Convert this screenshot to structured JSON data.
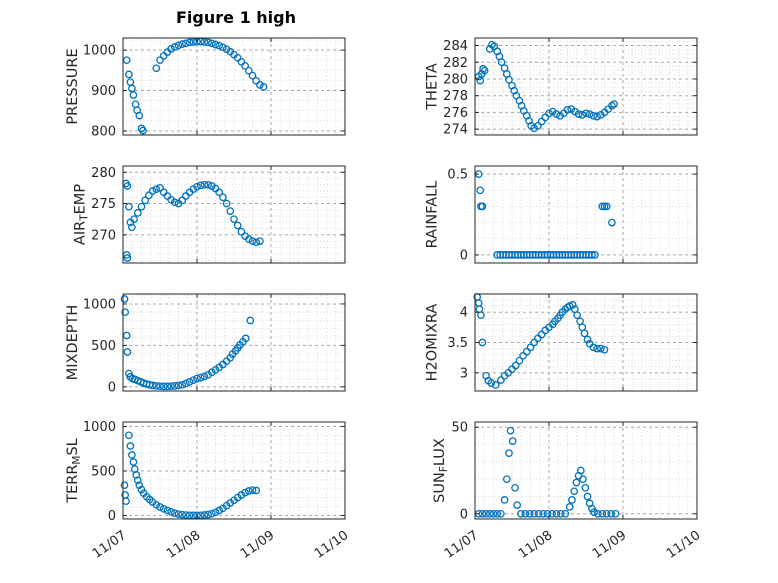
{
  "figure": {
    "title": "Figure 1 high",
    "marker_color": "#0072BD",
    "axis_color": "#262626",
    "grid_major_color": "#a9a9a9",
    "grid_minor_color": "#d8d8d8",
    "background": "#ffffff"
  },
  "x_axis": {
    "lim": [
      0,
      3
    ],
    "ticks": [
      0,
      1,
      2,
      3
    ],
    "tick_labels": [
      "11/07",
      "11/08",
      "11/09",
      "11/10"
    ],
    "minor_step": 0.125
  },
  "chart_data": [
    {
      "name": "PRESSURE",
      "type": "scatter",
      "ylabel_parts": [
        {
          "text": "PRESSURE",
          "sub": false
        }
      ],
      "ylim": [
        790,
        1030
      ],
      "yticks": [
        800,
        900,
        1000
      ],
      "ytick_labels": [
        "800",
        "900",
        "1000"
      ],
      "y_minor_step": 25,
      "x": [
        0.05,
        0.08,
        0.1,
        0.12,
        0.14,
        0.17,
        0.19,
        0.22,
        0.25,
        0.27,
        0.45,
        0.5,
        0.55,
        0.6,
        0.65,
        0.7,
        0.75,
        0.8,
        0.85,
        0.9,
        0.95,
        1.0,
        1.05,
        1.1,
        1.15,
        1.2,
        1.25,
        1.3,
        1.35,
        1.4,
        1.45,
        1.5,
        1.55,
        1.6,
        1.65,
        1.7,
        1.75,
        1.8,
        1.85,
        1.9
      ],
      "y": [
        975,
        940,
        921,
        905,
        889,
        866,
        851,
        838,
        806,
        801,
        955,
        975,
        986,
        995,
        1003,
        1008,
        1012,
        1015,
        1017,
        1019,
        1020,
        1021,
        1021,
        1020,
        1019,
        1017,
        1014,
        1011,
        1007,
        1002,
        996,
        989,
        981,
        971,
        961,
        949,
        937,
        924,
        914,
        909
      ]
    },
    {
      "name": "THETA",
      "type": "scatter",
      "ylabel_parts": [
        {
          "text": "THETA",
          "sub": false
        }
      ],
      "ylim": [
        273.3,
        284.9
      ],
      "yticks": [
        274,
        276,
        278,
        280,
        282,
        284
      ],
      "ytick_labels": [
        "274",
        "276",
        "278",
        "280",
        "282",
        "284"
      ],
      "y_minor_step": 0.5,
      "x": [
        0.05,
        0.07,
        0.09,
        0.11,
        0.13,
        0.2,
        0.23,
        0.26,
        0.3,
        0.33,
        0.36,
        0.4,
        0.43,
        0.46,
        0.5,
        0.53,
        0.56,
        0.6,
        0.63,
        0.66,
        0.7,
        0.73,
        0.76,
        0.8,
        0.85,
        0.9,
        0.95,
        1.0,
        1.05,
        1.1,
        1.15,
        1.2,
        1.25,
        1.3,
        1.35,
        1.4,
        1.45,
        1.5,
        1.55,
        1.6,
        1.65,
        1.7,
        1.75,
        1.8,
        1.85,
        1.88
      ],
      "y": [
        280.3,
        279.8,
        280.6,
        281.2,
        281.0,
        283.6,
        284.1,
        283.9,
        283.3,
        282.7,
        282.0,
        281.3,
        280.6,
        279.9,
        279.2,
        278.6,
        278.0,
        277.4,
        276.8,
        276.2,
        275.6,
        275.0,
        274.4,
        274.1,
        274.4,
        274.9,
        275.4,
        275.9,
        276.1,
        275.8,
        275.6,
        275.9,
        276.3,
        276.4,
        276.1,
        275.8,
        275.7,
        275.9,
        275.8,
        275.6,
        275.5,
        275.7,
        276.0,
        276.4,
        276.8,
        277.0
      ]
    },
    {
      "name": "AIR_TEMP",
      "type": "scatter",
      "ylabel_parts": [
        {
          "text": "AIR",
          "sub": false
        },
        {
          "text": "T",
          "sub": true
        },
        {
          "text": "EMP",
          "sub": false
        }
      ],
      "ylim": [
        265.5,
        281
      ],
      "yticks": [
        270,
        275,
        280
      ],
      "ytick_labels": [
        "270",
        "275",
        "280"
      ],
      "y_minor_step": 1,
      "x": [
        0.04,
        0.05,
        0.06,
        0.06,
        0.08,
        0.1,
        0.12,
        0.15,
        0.2,
        0.25,
        0.3,
        0.35,
        0.4,
        0.45,
        0.5,
        0.55,
        0.6,
        0.65,
        0.7,
        0.75,
        0.8,
        0.85,
        0.9,
        0.95,
        1.0,
        1.05,
        1.1,
        1.15,
        1.2,
        1.25,
        1.3,
        1.35,
        1.4,
        1.45,
        1.5,
        1.55,
        1.6,
        1.65,
        1.7,
        1.75,
        1.8,
        1.85
      ],
      "y": [
        278.2,
        266.8,
        277.8,
        266.3,
        274.5,
        272.0,
        271.2,
        272.5,
        273.5,
        274.5,
        275.5,
        276.3,
        277.0,
        277.3,
        277.5,
        276.8,
        276.2,
        275.6,
        275.2,
        275.0,
        275.5,
        276.2,
        276.8,
        277.3,
        277.7,
        277.9,
        278.0,
        278.0,
        277.8,
        277.4,
        276.8,
        276.0,
        275.0,
        273.8,
        272.5,
        271.5,
        270.5,
        269.8,
        269.3,
        269.0,
        268.8,
        269.0
      ]
    },
    {
      "name": "RAINFALL",
      "type": "scatter",
      "ylabel_parts": [
        {
          "text": "RAINFALL",
          "sub": false
        }
      ],
      "ylim": [
        -0.05,
        0.55
      ],
      "yticks": [
        0,
        0.5
      ],
      "ytick_labels": [
        "0",
        "0.5"
      ],
      "y_minor_step": 0.1,
      "x": [
        0.05,
        0.07,
        0.08,
        0.1,
        0.3,
        0.34,
        0.38,
        0.42,
        0.46,
        0.5,
        0.54,
        0.58,
        0.62,
        0.66,
        0.7,
        0.74,
        0.78,
        0.82,
        0.86,
        0.9,
        0.94,
        0.98,
        1.02,
        1.06,
        1.1,
        1.14,
        1.18,
        1.22,
        1.26,
        1.3,
        1.34,
        1.38,
        1.42,
        1.46,
        1.5,
        1.54,
        1.58,
        1.62,
        1.72,
        1.75,
        1.78,
        1.85
      ],
      "y": [
        0.5,
        0.4,
        0.3,
        0.3,
        0,
        0,
        0,
        0,
        0,
        0,
        0,
        0,
        0,
        0,
        0,
        0,
        0,
        0,
        0,
        0,
        0,
        0,
        0,
        0,
        0,
        0,
        0,
        0,
        0,
        0,
        0,
        0,
        0,
        0,
        0,
        0,
        0,
        0,
        0.3,
        0.3,
        0.3,
        0.2
      ]
    },
    {
      "name": "MIXDEPTH",
      "type": "scatter",
      "ylabel_parts": [
        {
          "text": "MIXDEPTH",
          "sub": false
        }
      ],
      "ylim": [
        -50,
        1120
      ],
      "yticks": [
        0,
        500,
        1000
      ],
      "ytick_labels": [
        "0",
        "500",
        "1000"
      ],
      "y_minor_step": 100,
      "x": [
        0.02,
        0.03,
        0.05,
        0.06,
        0.08,
        0.1,
        0.13,
        0.16,
        0.2,
        0.24,
        0.28,
        0.32,
        0.36,
        0.4,
        0.45,
        0.5,
        0.55,
        0.6,
        0.65,
        0.7,
        0.75,
        0.8,
        0.85,
        0.9,
        0.95,
        1.0,
        1.05,
        1.1,
        1.15,
        1.2,
        1.25,
        1.3,
        1.35,
        1.4,
        1.45,
        1.48,
        1.52,
        1.55,
        1.58,
        1.62,
        1.66,
        1.72
      ],
      "y": [
        1060,
        900,
        620,
        420,
        160,
        120,
        100,
        90,
        75,
        60,
        45,
        35,
        25,
        18,
        12,
        8,
        6,
        5,
        8,
        12,
        18,
        25,
        40,
        60,
        80,
        100,
        112,
        125,
        145,
        175,
        205,
        235,
        270,
        310,
        350,
        395,
        435,
        470,
        505,
        545,
        585,
        800
      ]
    },
    {
      "name": "H2OMIXRA",
      "type": "scatter",
      "ylabel_parts": [
        {
          "text": "H2OMIXRA",
          "sub": false
        }
      ],
      "ylim": [
        2.7,
        4.3
      ],
      "yticks": [
        3,
        3.5,
        4
      ],
      "ytick_labels": [
        "3",
        "3.5",
        "4"
      ],
      "y_minor_step": 0.1,
      "x": [
        0.03,
        0.05,
        0.06,
        0.08,
        0.1,
        0.15,
        0.18,
        0.22,
        0.28,
        0.35,
        0.4,
        0.45,
        0.5,
        0.55,
        0.6,
        0.65,
        0.7,
        0.75,
        0.8,
        0.85,
        0.9,
        0.95,
        1.0,
        1.05,
        1.08,
        1.12,
        1.15,
        1.18,
        1.22,
        1.25,
        1.28,
        1.32,
        1.35,
        1.38,
        1.42,
        1.45,
        1.48,
        1.52,
        1.55,
        1.6,
        1.65,
        1.7,
        1.75
      ],
      "y": [
        4.25,
        4.15,
        4.05,
        3.95,
        3.5,
        2.95,
        2.87,
        2.83,
        2.8,
        2.88,
        2.95,
        3.0,
        3.06,
        3.12,
        3.2,
        3.28,
        3.35,
        3.42,
        3.5,
        3.57,
        3.63,
        3.7,
        3.75,
        3.8,
        3.85,
        3.9,
        3.95,
        4.0,
        4.05,
        4.08,
        4.1,
        4.12,
        4.05,
        3.95,
        3.85,
        3.75,
        3.65,
        3.55,
        3.48,
        3.42,
        3.4,
        3.4,
        3.38
      ]
    },
    {
      "name": "TERR_MSL",
      "type": "scatter",
      "ylabel_parts": [
        {
          "text": "TERR",
          "sub": false
        },
        {
          "text": "M",
          "sub": true
        },
        {
          "text": "SL",
          "sub": false
        }
      ],
      "ylim": [
        -40,
        1050
      ],
      "yticks": [
        0,
        500,
        1000
      ],
      "ytick_labels": [
        "0",
        "500",
        "1000"
      ],
      "y_minor_step": 100,
      "x": [
        0.02,
        0.03,
        0.04,
        0.08,
        0.1,
        0.12,
        0.14,
        0.16,
        0.18,
        0.2,
        0.22,
        0.25,
        0.28,
        0.32,
        0.36,
        0.4,
        0.45,
        0.5,
        0.55,
        0.6,
        0.65,
        0.7,
        0.75,
        0.8,
        0.85,
        0.9,
        0.95,
        1.0,
        1.05,
        1.1,
        1.15,
        1.2,
        1.25,
        1.3,
        1.35,
        1.4,
        1.45,
        1.5,
        1.55,
        1.6,
        1.65,
        1.7,
        1.75,
        1.8
      ],
      "y": [
        340,
        230,
        160,
        900,
        780,
        680,
        600,
        520,
        455,
        395,
        340,
        290,
        250,
        210,
        180,
        150,
        120,
        95,
        75,
        55,
        40,
        25,
        15,
        8,
        4,
        2,
        0,
        0,
        2,
        5,
        10,
        20,
        35,
        55,
        80,
        110,
        140,
        170,
        200,
        230,
        255,
        275,
        285,
        280
      ]
    },
    {
      "name": "SUN_FLUX",
      "type": "scatter",
      "ylabel_parts": [
        {
          "text": "SUN",
          "sub": false
        },
        {
          "text": "F",
          "sub": true
        },
        {
          "text": "LUX",
          "sub": false
        }
      ],
      "ylim": [
        -3,
        53
      ],
      "yticks": [
        0,
        50
      ],
      "ytick_labels": [
        "0",
        "50"
      ],
      "y_minor_step": 10,
      "x": [
        0.05,
        0.1,
        0.15,
        0.2,
        0.25,
        0.3,
        0.35,
        0.4,
        0.43,
        0.46,
        0.48,
        0.51,
        0.54,
        0.57,
        0.62,
        0.68,
        0.74,
        0.8,
        0.86,
        0.92,
        0.98,
        1.04,
        1.1,
        1.16,
        1.22,
        1.28,
        1.31,
        1.34,
        1.37,
        1.4,
        1.43,
        1.46,
        1.49,
        1.52,
        1.55,
        1.58,
        1.61,
        1.66,
        1.72,
        1.78,
        1.84,
        1.9
      ],
      "y": [
        0,
        0,
        0,
        0,
        0,
        0,
        0,
        8,
        20,
        35,
        48,
        42,
        15,
        5,
        0,
        0,
        0,
        0,
        0,
        0,
        0,
        0,
        0,
        0,
        0,
        4,
        8,
        13,
        18,
        22,
        25,
        20,
        15,
        10,
        6,
        3,
        1,
        0,
        0,
        0,
        0,
        0
      ]
    }
  ]
}
